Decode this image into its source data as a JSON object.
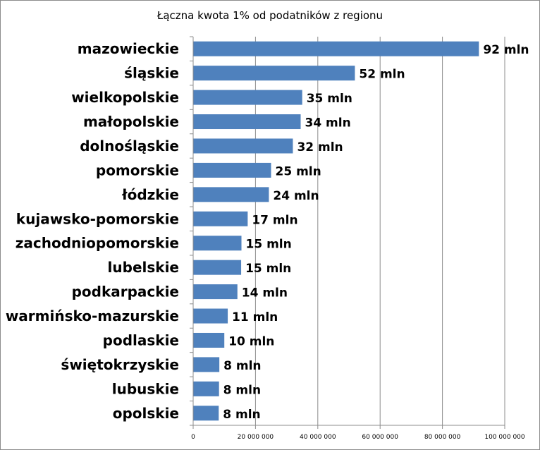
{
  "chart_data": {
    "type": "bar",
    "orientation": "horizontal",
    "title": "Łączna kwota 1% od podatników  z regionu",
    "xlabel": "",
    "ylabel": "",
    "xlim": [
      0,
      100000000
    ],
    "grid": true,
    "legend": "none",
    "bar_color": "#4f81bd",
    "categories": [
      "mazowieckie",
      "śląskie",
      "wielkopolskie",
      "małopolskie",
      "dolnośląskie",
      "pomorskie",
      "łódzkie",
      "kujawsko-pomorskie",
      "zachodniopomorskie",
      "lubelskie",
      "podkarpackie",
      "warmińsko-mazurskie",
      "podlaskie",
      "świętokrzyskie",
      "lubuskie",
      "opolskie"
    ],
    "values": [
      91700000,
      51900000,
      35000000,
      34500000,
      32000000,
      25000000,
      24300000,
      17500000,
      15500000,
      15400000,
      14200000,
      11100000,
      10000000,
      8400000,
      8300000,
      8200000
    ],
    "data_labels": [
      "92 mln",
      "52 mln",
      "35 mln",
      "34 mln",
      "32 mln",
      "25 mln",
      "24 mln",
      "17 mln",
      "15 mln",
      "15 mln",
      "14 mln",
      "11 mln",
      "10 mln",
      "8 mln",
      "8 mln",
      "8 mln"
    ],
    "x_ticks": [
      0,
      20000000,
      40000000,
      60000000,
      80000000,
      100000000
    ],
    "x_tick_labels": [
      "0",
      "20 000 000",
      "40 000 000",
      "60 000 000",
      "80 000 000",
      "100 000 000"
    ]
  }
}
